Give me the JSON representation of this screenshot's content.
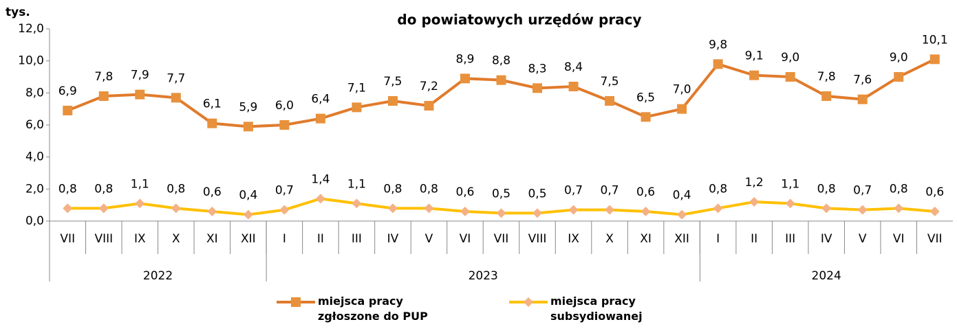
{
  "chart_data": {
    "type": "line",
    "title": "do powiatowych urzędów pracy",
    "y_unit": "tys.",
    "categories": [
      "VII",
      "VIII",
      "IX",
      "X",
      "XI",
      "XII",
      "I",
      "II",
      "III",
      "IV",
      "V",
      "VI",
      "VII",
      "VIII",
      "IX",
      "X",
      "XI",
      "XII",
      "I",
      "II",
      "III",
      "IV",
      "V",
      "VI",
      "VII"
    ],
    "groups": [
      {
        "label": "2022",
        "span": 6
      },
      {
        "label": "2023",
        "span": 12
      },
      {
        "label": "2024",
        "span": 7
      }
    ],
    "series": [
      {
        "name": "miejsca pracy zgłoszone do PUP",
        "color": "#e07b2c",
        "marker": "square",
        "marker_color": "#e8913c",
        "values": [
          6.9,
          7.8,
          7.9,
          7.7,
          6.1,
          5.9,
          6.0,
          6.4,
          7.1,
          7.5,
          7.2,
          8.9,
          8.8,
          8.3,
          8.4,
          7.5,
          6.5,
          7.0,
          9.8,
          9.1,
          9.0,
          7.8,
          7.6,
          9.0,
          10.1
        ],
        "value_labels": [
          "6,9",
          "7,8",
          "7,9",
          "7,7",
          "6,1",
          "5,9",
          "6,0",
          "6,4",
          "7,1",
          "7,5",
          "7,2",
          "8,9",
          "8,8",
          "8,3",
          "8,4",
          "7,5",
          "6,5",
          "7,0",
          "9,8",
          "9,1",
          "9,0",
          "7,8",
          "7,6",
          "9,0",
          "10,1"
        ]
      },
      {
        "name": "miejsca pracy subsydiowanej",
        "color": "#ffc000",
        "marker": "diamond",
        "marker_color": "#f4b183",
        "values": [
          0.8,
          0.8,
          1.1,
          0.8,
          0.6,
          0.4,
          0.7,
          1.4,
          1.1,
          0.8,
          0.8,
          0.6,
          0.5,
          0.5,
          0.7,
          0.7,
          0.6,
          0.4,
          0.8,
          1.2,
          1.1,
          0.8,
          0.7,
          0.8,
          0.6
        ],
        "value_labels": [
          "0,8",
          "0,8",
          "1,1",
          "0,8",
          "0,6",
          "0,4",
          "0,7",
          "1,4",
          "1,1",
          "0,8",
          "0,8",
          "0,6",
          "0,5",
          "0,5",
          "0,7",
          "0,7",
          "0,6",
          "0,4",
          "0,8",
          "1,2",
          "1,1",
          "0,8",
          "0,7",
          "0,8",
          "0,6"
        ]
      }
    ],
    "ylim": [
      0,
      12
    ],
    "yticks": [
      {
        "value": 0,
        "label": "0,0"
      },
      {
        "value": 2,
        "label": "2,0"
      },
      {
        "value": 4,
        "label": "4,0"
      },
      {
        "value": 6,
        "label": "6,0"
      },
      {
        "value": 8,
        "label": "8,0"
      },
      {
        "value": 10,
        "label": "10,0"
      },
      {
        "value": 12,
        "label": "12,0"
      }
    ],
    "grid": false
  }
}
